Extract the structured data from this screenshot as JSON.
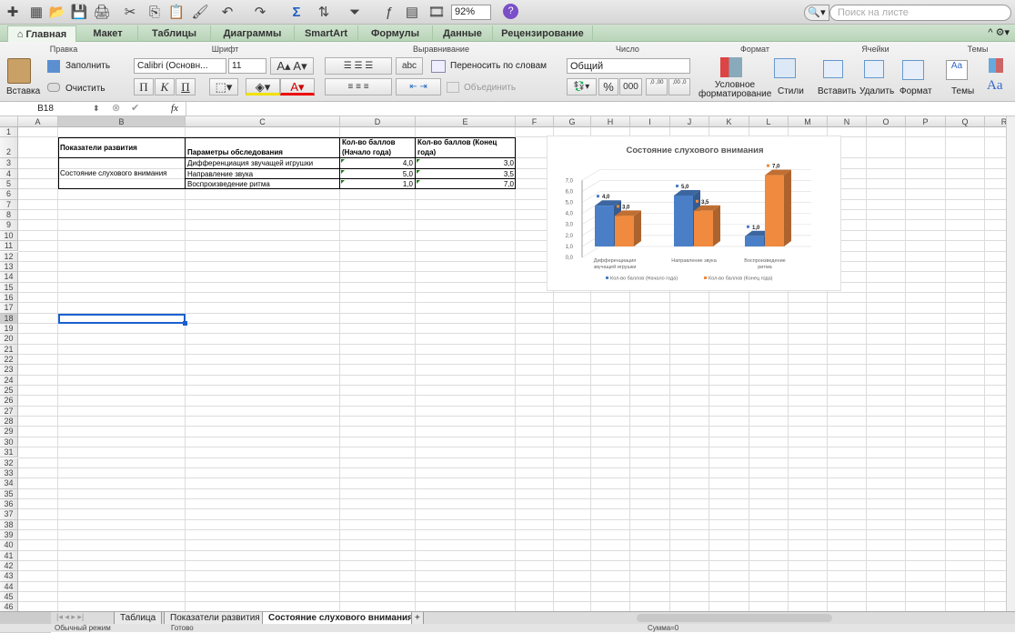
{
  "toolbar": {
    "zoom": "92%",
    "search_placeholder": "Поиск на листе",
    "icons": [
      "new-icon",
      "gallery-icon",
      "open-icon",
      "save-icon",
      "print-icon",
      "cut-icon",
      "copy-icon",
      "paste-icon",
      "format-painter-icon",
      "undo-icon",
      "redo-icon",
      "autosum-icon",
      "sort-icon",
      "filter-icon",
      "formula-builder-icon",
      "show-toolbox-icon",
      "media-icon",
      "help-icon"
    ]
  },
  "ribbon_tabs": [
    "Главная",
    "Макет",
    "Таблицы",
    "Диаграммы",
    "SmartArt",
    "Формулы",
    "Данные",
    "Рецензирование"
  ],
  "ribbon": {
    "groups": {
      "edit": "Правка",
      "font": "Шрифт",
      "align": "Выравнивание",
      "number": "Число",
      "format": "Формат",
      "cells": "Ячейки",
      "themes": "Темы"
    },
    "paste": "Вставка",
    "fill": "Заполнить",
    "clear": "Очистить",
    "font_name": "Calibri (Основн...",
    "font_size": "11",
    "bold": "П",
    "italic": "К",
    "underline": "П",
    "wrap": "Переносить по словам",
    "merge": "Объединить",
    "abc": "abc",
    "number_format": "Общий",
    "percent": "%",
    "thousands": "000",
    "inc_decimal": ",0 ,00",
    "dec_decimal": ",00 ,0",
    "cond_format": "Условное форматирование",
    "styles": "Стили",
    "insert": "Вставить",
    "delete": "Удалить",
    "format": "Формат",
    "themes": "Темы",
    "fonts_aa": "Aa"
  },
  "formula_bar": {
    "cell_ref": "B18",
    "fx": "fx",
    "value": ""
  },
  "columns": [
    "A",
    "B",
    "C",
    "D",
    "E",
    "F",
    "G",
    "H",
    "I",
    "J",
    "K",
    "L",
    "M",
    "N",
    "O",
    "P",
    "Q",
    "R"
  ],
  "rows": [
    1,
    2,
    3,
    4,
    5,
    6,
    7,
    8,
    9,
    10,
    11,
    12,
    13,
    14,
    15,
    16,
    17,
    18,
    19,
    20,
    21,
    22,
    23,
    24,
    25,
    26,
    27,
    28,
    29,
    30,
    31,
    32,
    33,
    34,
    35,
    36,
    37,
    38,
    39,
    40,
    41,
    42,
    43,
    44,
    45,
    46
  ],
  "table": {
    "header": [
      "Показатели развития",
      "Параметры обследования",
      "Кол-во баллов (Начало года)",
      "Кол-во баллов (Конец года)"
    ],
    "indicator": "Состояние слухового внимания",
    "rows": [
      {
        "param": "Дифференциация звучащей игрушки",
        "start": "4,0",
        "end": "3,0"
      },
      {
        "param": "Направление звука",
        "start": "5,0",
        "end": "3,5"
      },
      {
        "param": "Воспроизведение ритма",
        "start": "1,0",
        "end": "7,0"
      }
    ]
  },
  "chart_data": {
    "type": "bar",
    "title": "Состояние слухового внимания",
    "categories": [
      "Дифференциация звучащей игрушки",
      "Направление звука",
      "Воспроизведение ритма"
    ],
    "series": [
      {
        "name": "Кол-во баллов (Начало года)",
        "values": [
          4.0,
          5.0,
          1.0
        ],
        "color": "#4a7fc8"
      },
      {
        "name": "Кол-во баллов (Конец года)",
        "values": [
          3.0,
          3.5,
          7.0
        ],
        "color": "#f08a3e"
      }
    ],
    "data_labels": [
      [
        "4,0",
        "5,0",
        "1,0"
      ],
      [
        "3,0",
        "3,5",
        "7,0"
      ]
    ],
    "yticks": [
      "0,0",
      "1,0",
      "2,0",
      "3,0",
      "4,0",
      "5,0",
      "6,0",
      "7,0"
    ],
    "ylim": [
      0,
      7
    ],
    "grid": true,
    "legend": "bottom",
    "style": "3d-column"
  },
  "sheets": [
    "Таблица",
    "Показатели развития",
    "Состояние слухового внимания"
  ],
  "active_sheet": 2,
  "status": {
    "mode": "Обычный режим",
    "ready": "Готово",
    "sum": "Сумма=0"
  }
}
